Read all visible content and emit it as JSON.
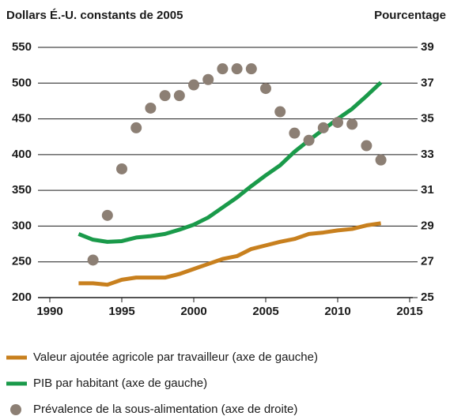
{
  "chart_data": {
    "type": "line",
    "y_label": "Dollars É.-U. constants de 2005",
    "y2_label": "Pourcentage",
    "x": [
      1992,
      1993,
      1994,
      1995,
      1996,
      1997,
      1998,
      1999,
      2000,
      2001,
      2002,
      2003,
      2004,
      2005,
      2006,
      2007,
      2008,
      2009,
      2010,
      2011,
      2012,
      2013
    ],
    "series": [
      {
        "name": "Valeur ajoutée agricole par travailleur (axe de gauche)",
        "type": "line",
        "color": "#c8801e",
        "axis": "y",
        "values": [
          220,
          220,
          218,
          225,
          228,
          228,
          228,
          233,
          240,
          247,
          254,
          258,
          268,
          273,
          278,
          282,
          289,
          291,
          294,
          296,
          301,
          304
        ]
      },
      {
        "name": "PIB par habitant (axe de gauche)",
        "type": "line",
        "color": "#1a9a4a",
        "axis": "y",
        "values": [
          289,
          281,
          278,
          279,
          284,
          286,
          289,
          295,
          302,
          312,
          326,
          340,
          356,
          371,
          385,
          404,
          420,
          435,
          450,
          464,
          482,
          501
        ]
      },
      {
        "name": "Prévalence de la sous-alimentation (axe de droite)",
        "type": "scatter",
        "color": "#8c7f74",
        "axis": "y2",
        "values": [
          null,
          27.1,
          29.6,
          32.2,
          34.5,
          35.6,
          36.3,
          36.3,
          36.9,
          37.2,
          37.8,
          37.8,
          37.8,
          36.7,
          35.4,
          34.2,
          33.8,
          34.5,
          34.8,
          34.7,
          33.5,
          32.7
        ]
      }
    ],
    "xlim": [
      1990,
      2015
    ],
    "xticks": [
      1990,
      1995,
      2000,
      2005,
      2010,
      2015
    ],
    "ylim": [
      200,
      550
    ],
    "yticks": [
      200,
      250,
      300,
      350,
      400,
      450,
      500,
      550
    ],
    "y2lim": [
      25,
      39
    ],
    "y2ticks": [
      25,
      27,
      29,
      31,
      33,
      35,
      37,
      39
    ],
    "grid": true
  }
}
